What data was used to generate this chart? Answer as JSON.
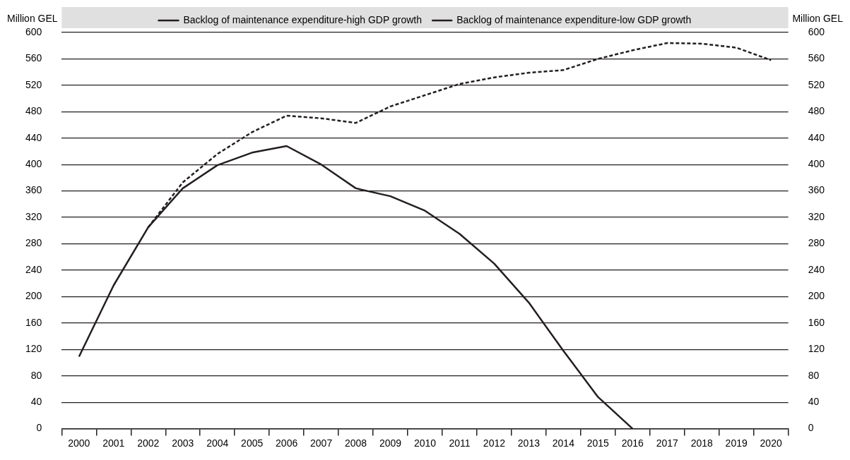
{
  "chart_data": {
    "type": "line",
    "categories": [
      "2000",
      "2001",
      "2002",
      "2003",
      "2004",
      "2005",
      "2006",
      "2007",
      "2008",
      "2009",
      "2010",
      "2011",
      "2012",
      "2013",
      "2014",
      "2015",
      "2016",
      "2017",
      "2018",
      "2019",
      "2020"
    ],
    "series": [
      {
        "name": "Backlog of maintenance expenditure-high GDP growth",
        "color": "#231f20",
        "line_style": "solid",
        "values": [
          109,
          217,
          305,
          364,
          399,
          418,
          428,
          400,
          364,
          352,
          330,
          295,
          250,
          191,
          118,
          48,
          0,
          null,
          null,
          null,
          null
        ]
      },
      {
        "name": "Backlog of maintenance expenditure-low GDP growth",
        "color": "#231f20",
        "line_style": "dashed",
        "values": [
          null,
          null,
          305,
          373,
          416,
          449,
          474,
          470,
          463,
          488,
          505,
          522,
          532,
          539,
          543,
          560,
          573,
          584,
          583,
          577,
          558
        ]
      }
    ],
    "ylabel": "Million GEL",
    "y2label": "Million GEL",
    "ylim": [
      0,
      600
    ],
    "yticks": [
      0,
      40,
      80,
      120,
      160,
      200,
      240,
      280,
      320,
      360,
      400,
      440,
      480,
      520,
      560,
      600
    ],
    "y2lim": [
      0,
      600
    ],
    "y2ticks": [
      0,
      40,
      80,
      120,
      160,
      200,
      240,
      280,
      320,
      360,
      400,
      440,
      480,
      520,
      560,
      600
    ],
    "grid": "y",
    "legend": "top",
    "marker": "none"
  }
}
